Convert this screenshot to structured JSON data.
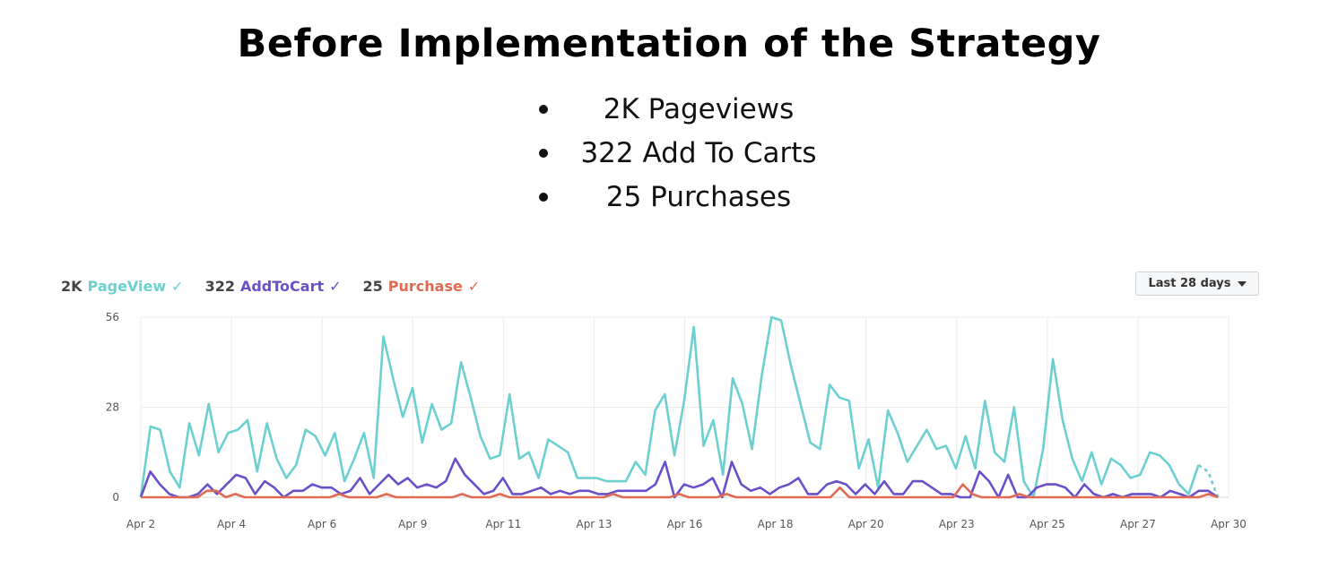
{
  "header": {
    "title": "Before Implementation of the Strategy",
    "bullets": [
      "2K Pageviews",
      "322 Add To Carts",
      "25 Purchases"
    ]
  },
  "legend": [
    {
      "count": "2K",
      "name": "PageView",
      "check": "✓",
      "color": "#6ccfd0"
    },
    {
      "count": "322",
      "name": "AddToCart",
      "check": "✓",
      "color": "#6a4fc9"
    },
    {
      "count": "25",
      "name": "Purchase",
      "check": "✓",
      "color": "#e06a52"
    }
  ],
  "range_button": {
    "label": "Last 28 days",
    "icon": "caret-down-icon"
  },
  "chart_data": {
    "type": "line",
    "ylim": [
      0,
      56
    ],
    "yticks": [
      0,
      28,
      56
    ],
    "grid": true,
    "x_tick_labels": [
      "Apr 2",
      "Apr 4",
      "Apr 6",
      "Apr 9",
      "Apr 11",
      "Apr 13",
      "Apr 16",
      "Apr 18",
      "Apr 20",
      "Apr 23",
      "Apr 25",
      "Apr 27",
      "Apr 30"
    ],
    "series": [
      {
        "name": "PageView",
        "color": "#6ccfd0",
        "values": [
          0,
          22,
          21,
          8,
          3,
          23,
          13,
          29,
          14,
          20,
          21,
          24,
          8,
          23,
          12,
          6,
          10,
          21,
          19,
          13,
          20,
          5,
          12,
          20,
          6,
          50,
          37,
          25,
          34,
          17,
          29,
          21,
          23,
          42,
          31,
          19,
          12,
          13,
          32,
          12,
          14,
          6,
          18,
          16,
          14,
          6,
          6,
          6,
          5,
          5,
          5,
          11,
          7,
          27,
          32,
          13,
          30,
          53,
          16,
          24,
          7,
          37,
          29,
          15,
          38,
          56,
          55,
          41,
          29,
          17,
          15,
          35,
          31,
          30,
          9,
          18,
          3,
          27,
          20,
          11,
          16,
          21,
          15,
          16,
          9,
          19,
          9,
          30,
          14,
          11,
          28,
          5,
          0,
          15,
          43,
          24,
          12,
          5,
          14,
          4,
          12,
          10,
          6,
          7,
          14,
          13,
          10,
          4,
          1,
          10,
          8,
          0
        ],
        "dashed_last": true
      },
      {
        "name": "AddToCart",
        "color": "#6a4fc9",
        "values": [
          0,
          8,
          4,
          1,
          0,
          0,
          1,
          4,
          1,
          4,
          7,
          6,
          1,
          5,
          3,
          0,
          2,
          2,
          4,
          3,
          3,
          1,
          2,
          6,
          1,
          4,
          7,
          4,
          6,
          3,
          4,
          3,
          5,
          12,
          7,
          4,
          1,
          2,
          6,
          1,
          1,
          2,
          3,
          1,
          2,
          1,
          2,
          2,
          1,
          1,
          2,
          2,
          2,
          2,
          4,
          11,
          0,
          4,
          3,
          4,
          6,
          0,
          11,
          4,
          2,
          3,
          1,
          3,
          4,
          6,
          1,
          1,
          4,
          5,
          4,
          1,
          4,
          1,
          5,
          1,
          1,
          5,
          5,
          3,
          1,
          1,
          0,
          0,
          8,
          5,
          0,
          7,
          0,
          0,
          3,
          4,
          4,
          3,
          0,
          4,
          1,
          0,
          1,
          0,
          1,
          1,
          1,
          0,
          2,
          1,
          0,
          2,
          2,
          0
        ]
      },
      {
        "name": "Purchase",
        "color": "#e06a52",
        "values": [
          0,
          0,
          0,
          0,
          0,
          0,
          0,
          2,
          2,
          0,
          1,
          0,
          0,
          0,
          0,
          0,
          0,
          0,
          0,
          0,
          0,
          1,
          0,
          0,
          0,
          0,
          1,
          0,
          0,
          0,
          0,
          0,
          0,
          0,
          1,
          0,
          0,
          0,
          1,
          0,
          0,
          0,
          0,
          0,
          0,
          0,
          0,
          0,
          0,
          0,
          1,
          0,
          0,
          0,
          0,
          0,
          0,
          1,
          0,
          0,
          0,
          0,
          1,
          0,
          0,
          0,
          0,
          0,
          0,
          0,
          0,
          0,
          0,
          0,
          3,
          0,
          0,
          0,
          0,
          0,
          0,
          0,
          0,
          0,
          0,
          0,
          0,
          4,
          1,
          0,
          0,
          0,
          0,
          1,
          0,
          0,
          0,
          0,
          0,
          0,
          0,
          0,
          0,
          0,
          0,
          0,
          0,
          0,
          0,
          0,
          0,
          0,
          0,
          1,
          0
        ]
      }
    ]
  }
}
